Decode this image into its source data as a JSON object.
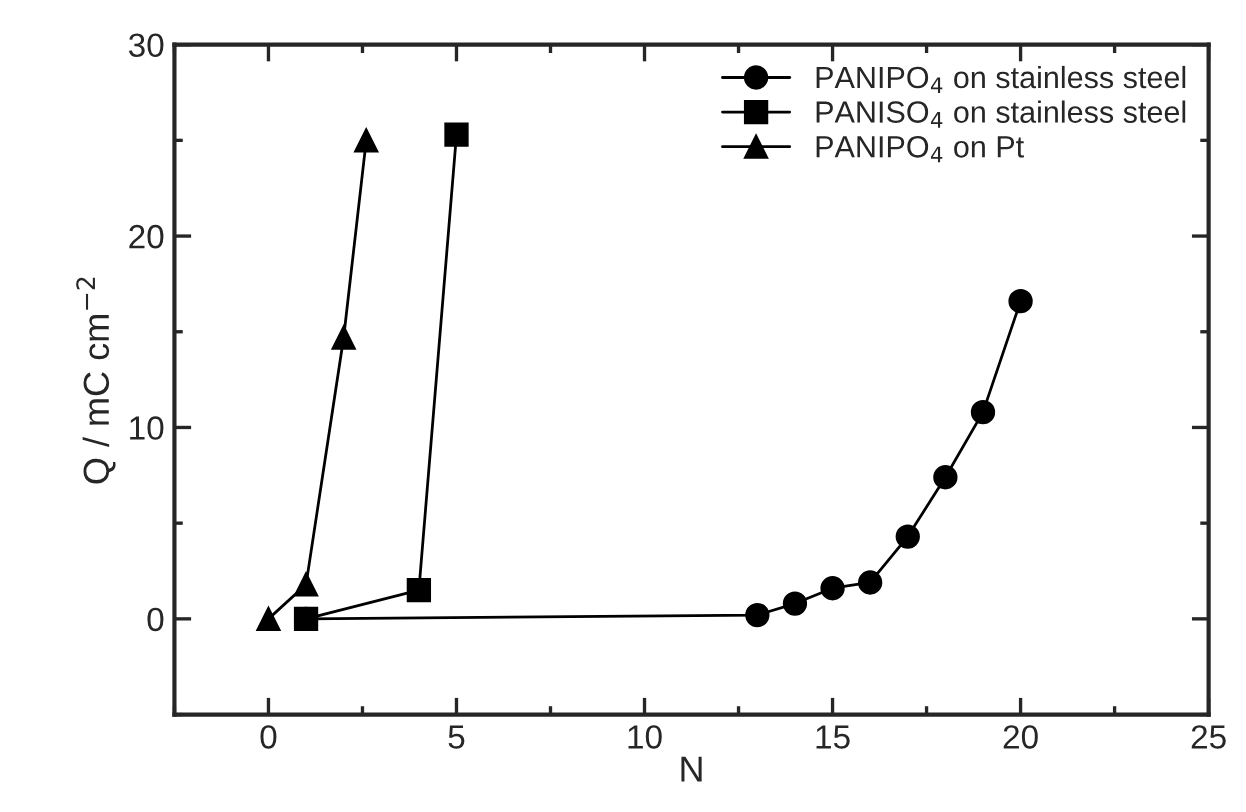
{
  "chart_data": {
    "type": "line",
    "xlabel": "N",
    "ylabel": "Q / mC cm$^{−2}$",
    "xlim": [
      -2.5,
      25
    ],
    "ylim": [
      -5,
      30
    ],
    "xticks": [
      0,
      5,
      10,
      15,
      20,
      25
    ],
    "yticks": [
      0,
      10,
      20,
      30
    ],
    "grid": false,
    "legend": "top right",
    "line_style": "solid",
    "series": [
      {
        "name": "PANIPO$_{4}$ on stainless steel",
        "color": "#000000",
        "marker": "circle",
        "x": [
          1,
          13,
          14,
          15,
          16,
          17,
          18,
          19,
          20
        ],
        "values": [
          0,
          0.2,
          0.8,
          1.6,
          1.9,
          4.3,
          7.4,
          10.8,
          16.6
        ]
      },
      {
        "name": "PANISO$_{4}$ on stainless steel",
        "color": "#000000",
        "marker": "square",
        "x": [
          1,
          4,
          5
        ],
        "values": [
          0,
          1.5,
          25.3
        ]
      },
      {
        "name": "PANIPO$_{4}$ on Pt",
        "color": "#000000",
        "marker": "triangle",
        "x": [
          0,
          1,
          2,
          2.6
        ],
        "values": [
          0,
          1.8,
          14.7,
          25.0
        ]
      }
    ]
  }
}
